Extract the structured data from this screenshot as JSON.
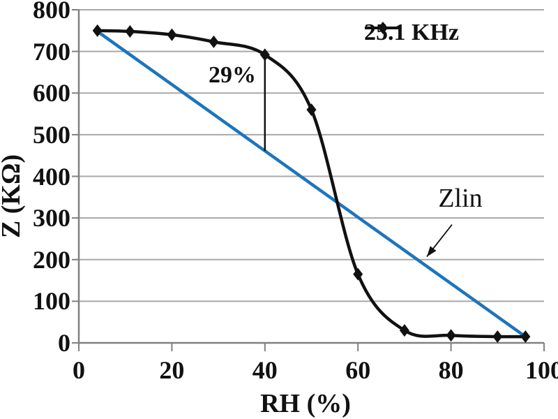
{
  "chart_data": {
    "type": "line",
    "title": "",
    "xlabel": "RH (%)",
    "ylabel": "Z (KΩ)",
    "xlim": [
      0,
      100
    ],
    "ylim": [
      0,
      800
    ],
    "xticks": [
      0,
      20,
      40,
      60,
      80,
      100
    ],
    "yticks": [
      0,
      100,
      200,
      300,
      400,
      500,
      600,
      700,
      800
    ],
    "grid": "horizontal-only",
    "legend_position": "top-inside",
    "series": [
      {
        "name": "25.1 KHz",
        "color": "#111111",
        "marker": "diamond",
        "smooth": true,
        "points": [
          [
            4,
            750
          ],
          [
            11,
            748
          ],
          [
            20,
            740
          ],
          [
            29,
            723
          ],
          [
            40,
            692
          ],
          [
            50,
            560
          ],
          [
            60,
            165
          ],
          [
            70,
            30
          ],
          [
            80,
            18
          ],
          [
            90,
            15
          ],
          [
            96,
            15
          ]
        ]
      },
      {
        "name": "Zlin",
        "color": "#1c75bc",
        "marker": "none",
        "smooth": false,
        "points": [
          [
            4,
            748
          ],
          [
            96,
            15
          ]
        ]
      }
    ],
    "annotations": {
      "drop_label": {
        "text": "29%",
        "x": 33,
        "y": 640
      },
      "drop_line": {
        "x": 40,
        "y_from": 692,
        "y_to": 461
      },
      "zlin_label": {
        "text": "Zlin",
        "x": 82,
        "y": 348
      },
      "zlin_arrow": {
        "from": [
          80.2,
          284
        ],
        "to": [
          74.8,
          207
        ]
      }
    },
    "colors": {
      "grid": "#a8a8a8",
      "axis": "#808080",
      "curve": "#111111",
      "zlin": "#1c75bc",
      "text": "#111111",
      "background": "#ffffff"
    }
  }
}
